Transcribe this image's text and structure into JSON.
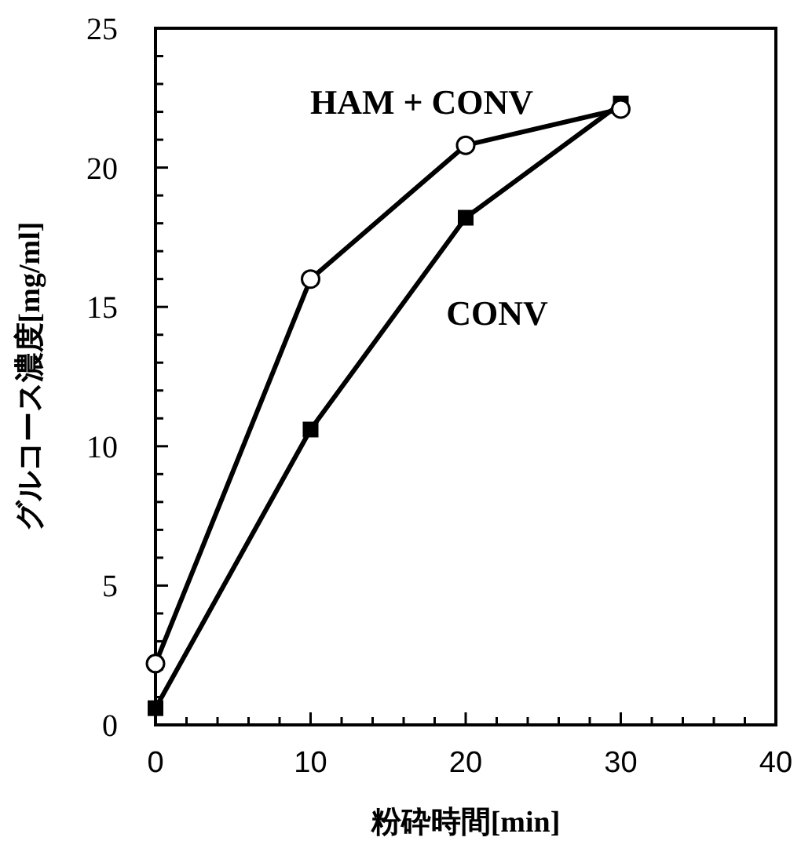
{
  "chart_data": {
    "type": "line",
    "xlabel": "粉砕時間[min]",
    "ylabel": "グルコース濃度[mg/ml]",
    "x": [
      0,
      10,
      20,
      30
    ],
    "series": [
      {
        "name": "HAM + CONV",
        "color": "#000000",
        "marker": "circle",
        "values": [
          2.2,
          16.0,
          20.8,
          22.1
        ]
      },
      {
        "name": "CONV",
        "color": "#000000",
        "marker": "square",
        "values": [
          0.6,
          10.6,
          18.2,
          22.3
        ]
      }
    ],
    "xlim": [
      0,
      40
    ],
    "xticks": [
      0,
      {
        "value": 2,
        "label": null
      },
      {
        "value": 4,
        "label": null
      },
      {
        "value": 6,
        "label": null
      },
      {
        "value": 8,
        "label": null
      },
      10,
      {
        "value": 12,
        "label": null
      },
      {
        "value": 14,
        "label": null
      },
      {
        "value": 16,
        "label": null
      },
      {
        "value": 18,
        "label": null
      },
      20,
      {
        "value": 22,
        "label": null
      },
      {
        "value": 24,
        "label": null
      },
      {
        "value": 26,
        "label": null
      },
      {
        "value": 28,
        "label": null
      },
      30,
      {
        "value": 32,
        "label": null
      },
      {
        "value": 34,
        "label": null
      },
      {
        "value": 36,
        "label": null
      },
      {
        "value": 38,
        "label": null
      },
      40
    ],
    "ylim": [
      0,
      25
    ],
    "yticks": [
      0,
      {
        "value": 1,
        "label": null
      },
      {
        "value": 2,
        "label": null
      },
      {
        "value": 3,
        "label": null
      },
      {
        "value": 4,
        "label": null
      },
      5,
      {
        "value": 6,
        "label": null
      },
      {
        "value": 7,
        "label": null
      },
      {
        "value": 8,
        "label": null
      },
      {
        "value": 9,
        "label": null
      },
      10,
      {
        "value": 11,
        "label": null
      },
      {
        "value": 12,
        "label": null
      },
      {
        "value": 13,
        "label": null
      },
      {
        "value": 14,
        "label": null
      },
      15,
      {
        "value": 16,
        "label": null
      },
      {
        "value": 17,
        "label": null
      },
      {
        "value": 18,
        "label": null
      },
      {
        "value": 19,
        "label": null
      },
      20,
      {
        "value": 21,
        "label": null
      },
      {
        "value": 22,
        "label": null
      },
      {
        "value": 23,
        "label": null
      },
      {
        "value": 24,
        "label": null
      },
      25
    ],
    "grid": false
  }
}
